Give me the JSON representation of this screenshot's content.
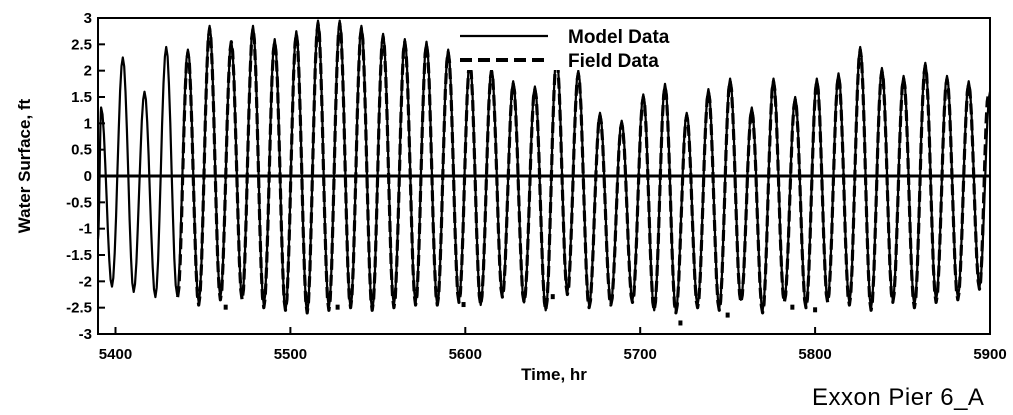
{
  "caption": "Exxon Pier 6_A",
  "chart_data": {
    "type": "line",
    "title": "",
    "xlabel": "Time, hr",
    "ylabel": "Water Surface, ft",
    "xlim": [
      5390,
      5900
    ],
    "ylim": [
      -3,
      3
    ],
    "x_ticks": [
      5400,
      5500,
      5600,
      5700,
      5800,
      5900
    ],
    "y_ticks": [
      3,
      2.5,
      2,
      1.5,
      1,
      0.5,
      0,
      -0.5,
      -1,
      -1.5,
      -2,
      -2.5,
      -3
    ],
    "y_tick_labels": [
      "3",
      "2.5",
      "2",
      "1.5",
      "1",
      "0.5",
      "0",
      "-0.5",
      "-1",
      "-1.5",
      "-2",
      "-2.5",
      "-3"
    ],
    "zero_line": 0,
    "grid": false,
    "legend_position": "top-center",
    "series": [
      {
        "name": "Model Data",
        "style": "solid",
        "color": "#000000",
        "x": [
          5390,
          5391.8,
          5398,
          5404.2,
          5410.4,
          5416.6,
          5422.8,
          5429,
          5435.2,
          5441.4,
          5447.6,
          5453.8,
          5460,
          5466.2,
          5472.4,
          5478.6,
          5484.8,
          5491,
          5497.2,
          5503.4,
          5509.6,
          5515.8,
          5522,
          5528.2,
          5534.4,
          5540.6,
          5546.8,
          5553,
          5559.2,
          5565.4,
          5571.6,
          5577.8,
          5584,
          5590.2,
          5596.4,
          5602.6,
          5608.8,
          5615,
          5621.2,
          5627.4,
          5633.6,
          5639.8,
          5646,
          5652.2,
          5658.4,
          5664.6,
          5670.8,
          5677,
          5683.2,
          5689.4,
          5695.6,
          5701.8,
          5708,
          5714.2,
          5720.4,
          5726.6,
          5732.8,
          5739,
          5745.2,
          5751.4,
          5757.6,
          5763.8,
          5770,
          5776.2,
          5782.4,
          5788.6,
          5794.8,
          5801,
          5807.2,
          5813.4,
          5819.6,
          5825.8,
          5832,
          5838.2,
          5844.4,
          5850.6,
          5856.8,
          5863,
          5869.2,
          5875.4,
          5881.6,
          5887.8,
          5894,
          5900
        ],
        "y": [
          -1.2,
          1.3,
          -2.1,
          2.25,
          -2.2,
          1.6,
          -2.3,
          2.45,
          -2.25,
          2.4,
          -2.4,
          2.85,
          -2.3,
          2.55,
          -2.3,
          2.85,
          -2.45,
          2.6,
          -2.55,
          2.75,
          -2.6,
          2.95,
          -2.5,
          2.95,
          -2.5,
          2.85,
          -2.55,
          2.7,
          -2.45,
          2.6,
          -2.4,
          2.55,
          -2.45,
          2.4,
          -2.35,
          2.2,
          -2.45,
          2.05,
          -2.25,
          1.8,
          -2.4,
          1.7,
          -2.55,
          2.3,
          -2.2,
          2.0,
          -2.45,
          1.2,
          -2.4,
          1.05,
          -2.35,
          1.55,
          -2.55,
          1.75,
          -2.55,
          1.2,
          -2.45,
          1.65,
          -2.5,
          1.85,
          -2.35,
          1.3,
          -2.55,
          1.85,
          -2.35,
          1.5,
          -2.45,
          1.85,
          -2.35,
          1.95,
          -2.4,
          2.45,
          -2.5,
          2.05,
          -2.35,
          1.9,
          -2.45,
          2.15,
          -2.35,
          1.9,
          -2.3,
          1.8,
          -2.1,
          1.6
        ]
      },
      {
        "name": "Field Data",
        "style": "dashed",
        "color": "#000000",
        "x": [
          5435.5,
          5441.4,
          5447.6,
          5453.8,
          5460,
          5466.2,
          5472.4,
          5478.6,
          5484.8,
          5491,
          5497.2,
          5503.4,
          5509.6,
          5515.8,
          5522,
          5528.2,
          5534.4,
          5540.6,
          5546.8,
          5553,
          5559.2,
          5565.4,
          5571.6,
          5577.8,
          5584,
          5590.2,
          5596.4,
          5602.6,
          5608.8,
          5615,
          5621.2,
          5627.4,
          5633.6,
          5639.8,
          5646,
          5652.2,
          5658.4,
          5664.6,
          5670.8,
          5677,
          5683.2,
          5689.4,
          5695.6,
          5701.8,
          5708,
          5714.2,
          5720.4,
          5726.6,
          5732.8,
          5739,
          5745.2,
          5751.4,
          5757.6,
          5763.8,
          5770,
          5776.2,
          5782.4,
          5788.6,
          5794.8,
          5801,
          5807.2,
          5813.4,
          5819.6,
          5825.8,
          5832,
          5838.2,
          5844.4,
          5850.6,
          5856.8,
          5863,
          5869.2,
          5875.4,
          5881.6,
          5887.8,
          5894,
          5899
        ],
        "y": [
          -2.3,
          2.35,
          -2.45,
          2.8,
          -2.35,
          2.55,
          -2.35,
          2.8,
          -2.5,
          2.55,
          -2.55,
          2.7,
          -2.6,
          2.9,
          -2.55,
          2.9,
          -2.5,
          2.8,
          -2.55,
          2.65,
          -2.5,
          2.55,
          -2.45,
          2.5,
          -2.45,
          2.35,
          -2.4,
          2.15,
          -2.45,
          2.0,
          -2.3,
          1.75,
          -2.4,
          1.65,
          -2.55,
          2.25,
          -2.25,
          1.95,
          -2.5,
          1.15,
          -2.45,
          1.0,
          -2.4,
          1.5,
          -2.55,
          1.7,
          -2.6,
          1.15,
          -2.5,
          1.6,
          -2.55,
          1.8,
          -2.4,
          1.25,
          -2.6,
          1.8,
          -2.4,
          1.45,
          -2.5,
          1.8,
          -2.4,
          1.9,
          -2.45,
          2.4,
          -2.55,
          2.0,
          -2.4,
          1.85,
          -2.5,
          2.1,
          -2.4,
          1.85,
          -2.35,
          1.75,
          -2.15,
          1.55
        ]
      },
      {
        "name": "",
        "style": "points",
        "color": "#000000",
        "x": [
          5463,
          5527,
          5599,
          5650,
          5723,
          5750,
          5787,
          5800
        ],
        "y": [
          -2.5,
          -2.5,
          -2.45,
          -2.3,
          -2.8,
          -2.65,
          -2.5,
          -2.55
        ]
      }
    ]
  }
}
